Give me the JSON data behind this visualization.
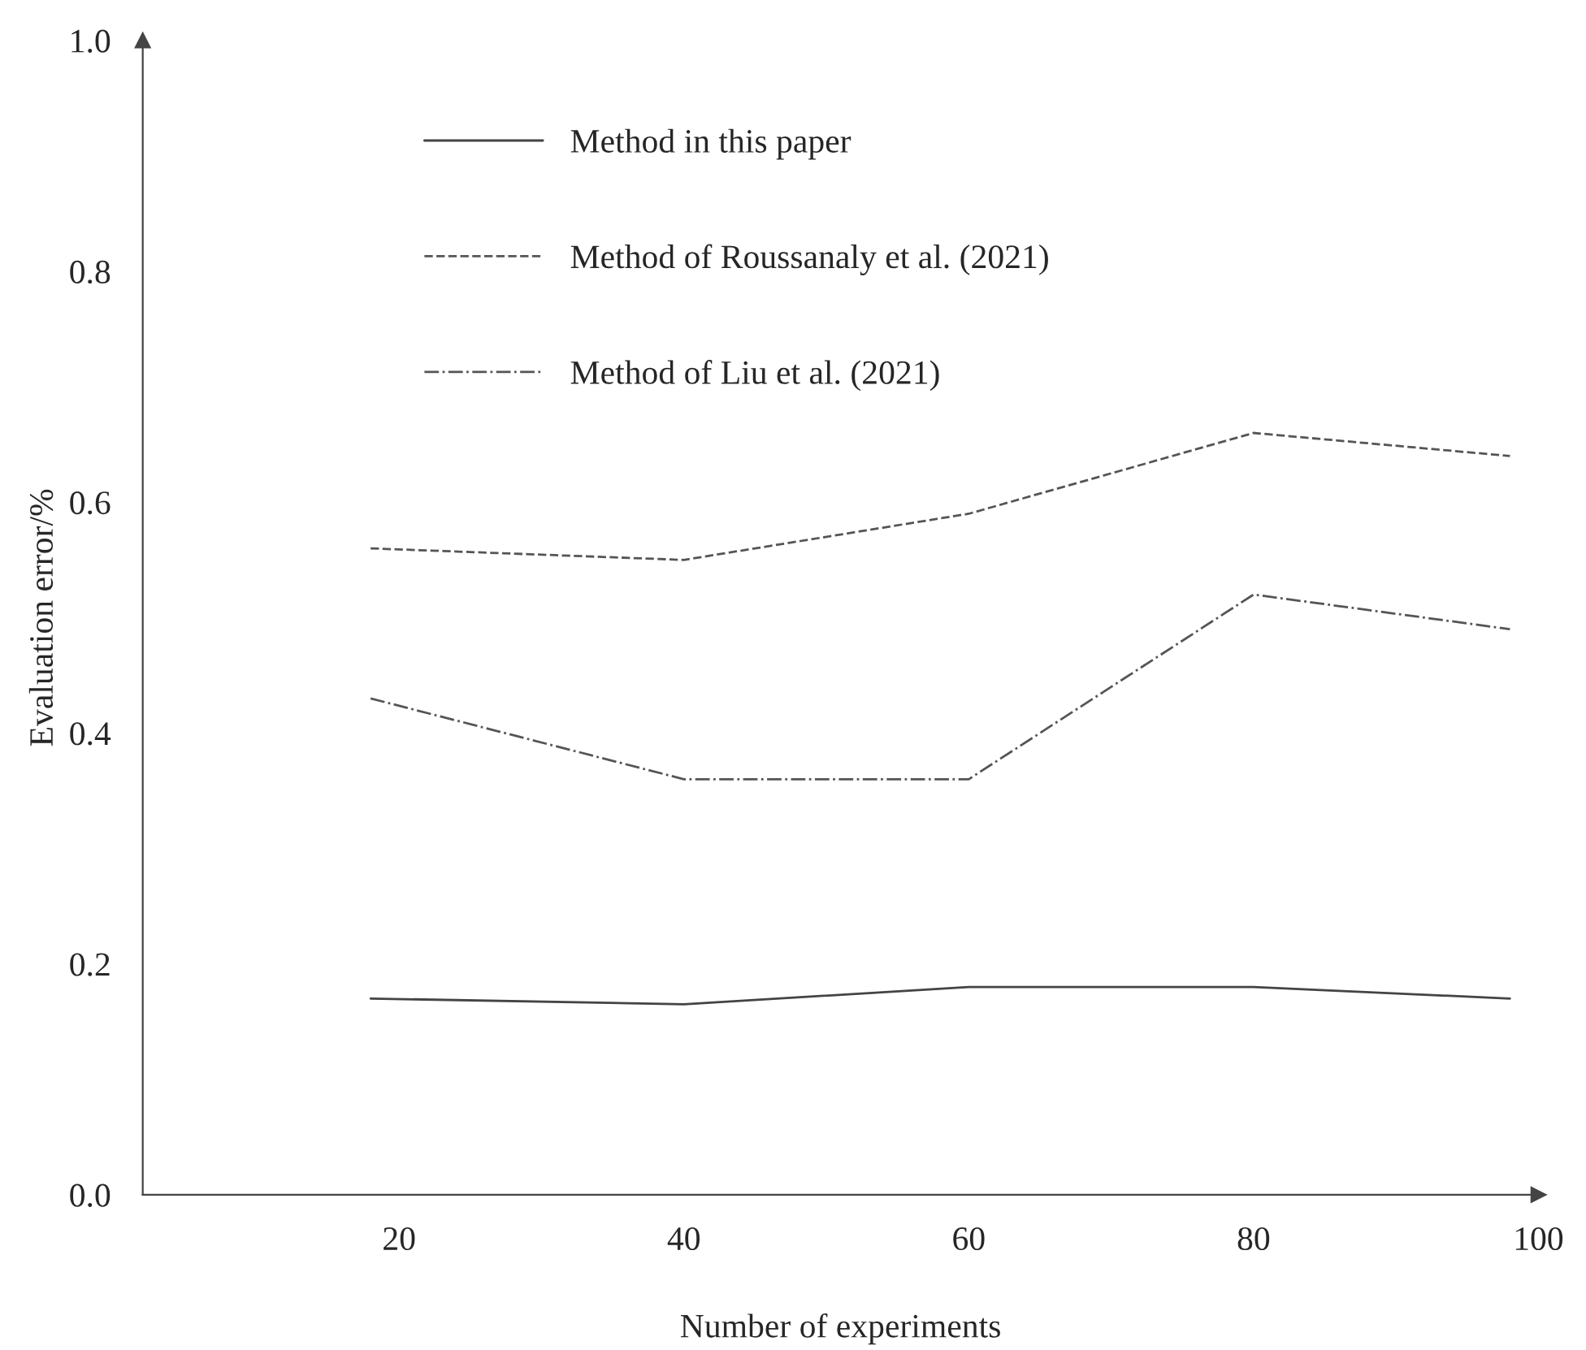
{
  "chart_data": {
    "type": "line",
    "xlabel": "Number of experiments",
    "ylabel": "Evaluation error/%",
    "x": [
      18,
      40,
      60,
      80,
      98
    ],
    "xlim": [
      2,
      100
    ],
    "xticks": [
      20,
      40,
      60,
      80,
      100
    ],
    "ylim": [
      0,
      1
    ],
    "yticks": [
      {
        "value": 0,
        "label": "0.0"
      },
      0.2,
      0.4,
      0.6,
      0.8,
      {
        "value": 1,
        "label": "1.0"
      }
    ],
    "grid": false,
    "legend": "top left",
    "marker": "none",
    "series": [
      {
        "name": "Method in this paper",
        "color": "#444444",
        "line_style": "solid",
        "values": [
          0.17,
          0.165,
          0.18,
          0.18,
          0.17
        ]
      },
      {
        "name": "Method of Roussanaly et al. (2021)",
        "color": "#555555",
        "line_style": "dashed",
        "values": [
          0.56,
          0.55,
          0.59,
          0.66,
          0.64
        ]
      },
      {
        "name": "Method of Liu et al. (2021)",
        "color": "#555555",
        "line_style": "dashdot",
        "values": [
          0.43,
          0.36,
          0.36,
          0.52,
          0.49
        ]
      }
    ]
  }
}
